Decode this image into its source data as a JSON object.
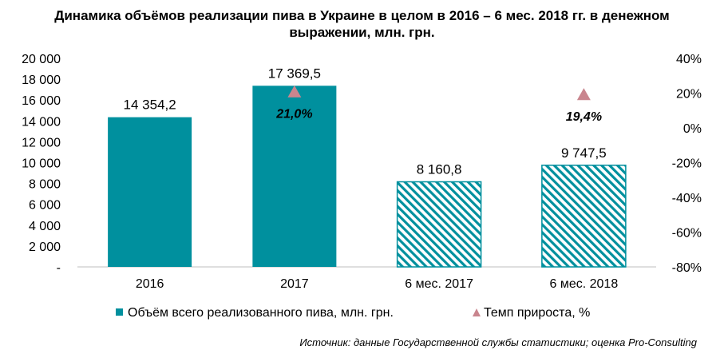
{
  "title_line1": "Динамика объёмов реализации пива в Украине в целом в 2016 – 6 мес. 2018 гг. в денежном",
  "title_line2": "выражении, млн. грн.",
  "source": "Источник: данные Государственной службы статистики; оценка Pro-Consulting",
  "colors": {
    "bar": "#00909e",
    "marker": "#c9858e"
  },
  "chart_data": {
    "type": "bar",
    "categories": [
      "2016",
      "2017",
      "6 мес. 2017",
      "6 мес. 2018"
    ],
    "series": [
      {
        "name": "Объём всего реализованного пива, млн. грн.",
        "values": [
          14354.2,
          17369.5,
          8160.8,
          9747.5
        ],
        "value_labels": [
          "14 354,2",
          "17 369,5",
          "8 160,8",
          "9 747,5"
        ],
        "pattern": [
          "solid",
          "solid",
          "hatched",
          "hatched"
        ]
      },
      {
        "name": "Темп прироста, %",
        "values": [
          null,
          21.0,
          null,
          19.4
        ],
        "value_labels": [
          "",
          "21,0%",
          "",
          "19,4%"
        ],
        "axis": "right"
      }
    ],
    "y_left": {
      "ylim": [
        0,
        20000
      ],
      "tick_labels": [
        "-",
        "2 000",
        "4 000",
        "6 000",
        "8 000",
        "10 000",
        "12 000",
        "14 000",
        "16 000",
        "18 000",
        "20 000"
      ]
    },
    "y_right": {
      "ylim": [
        -80,
        40
      ],
      "tick_labels": [
        "-80%",
        "-60%",
        "-40%",
        "-20%",
        "0%",
        "20%",
        "40%"
      ]
    },
    "legend_position": "bottom",
    "grid": false
  }
}
